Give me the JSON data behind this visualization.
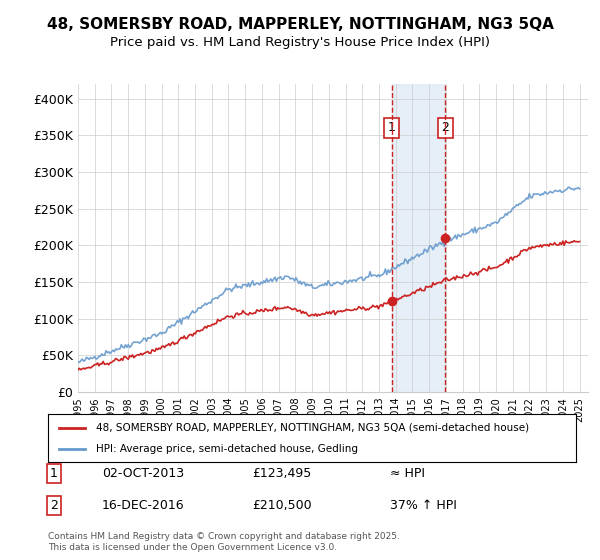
{
  "title_line1": "48, SOMERSBY ROAD, MAPPERLEY, NOTTINGHAM, NG3 5QA",
  "title_line2": "Price paid vs. HM Land Registry's House Price Index (HPI)",
  "ylabel_ticks": [
    "£0",
    "£50K",
    "£100K",
    "£150K",
    "£200K",
    "£250K",
    "£300K",
    "£350K",
    "£400K"
  ],
  "ytick_values": [
    0,
    50000,
    100000,
    150000,
    200000,
    250000,
    300000,
    350000,
    400000
  ],
  "ylim": [
    0,
    420000
  ],
  "xlim_start": 1995,
  "xlim_end": 2025.5,
  "hpi_color": "#6699cc",
  "price_color": "#cc2222",
  "marker1_x": 2013.75,
  "marker1_y": 123495,
  "marker1_label": "1",
  "marker1_date": "02-OCT-2013",
  "marker1_price": "£123,495",
  "marker1_hpi": "≈ HPI",
  "marker2_x": 2016.96,
  "marker2_y": 210500,
  "marker2_label": "2",
  "marker2_date": "16-DEC-2016",
  "marker2_price": "£210,500",
  "marker2_hpi": "37% ↑ HPI",
  "legend_line1": "48, SOMERSBY ROAD, MAPPERLEY, NOTTINGHAM, NG3 5QA (semi-detached house)",
  "legend_line2": "HPI: Average price, semi-detached house, Gedling",
  "footnote": "Contains HM Land Registry data © Crown copyright and database right 2025.\nThis data is licensed under the Open Government Licence v3.0.",
  "background_color": "#ffffff",
  "grid_color": "#cccccc",
  "shade_color": "#dce9f5"
}
